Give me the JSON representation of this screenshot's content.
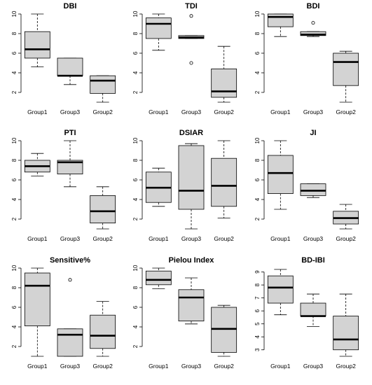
{
  "chart_data": [
    {
      "type": "box",
      "title": "DBI",
      "categories": [
        "Group1",
        "Group3",
        "Group2"
      ],
      "yticks": [
        2,
        4,
        6,
        8,
        10
      ],
      "ylim": [
        1,
        10
      ],
      "boxes": [
        {
          "min": 4.6,
          "q1": 5.5,
          "median": 6.4,
          "q3": 8.2,
          "max": 10.0,
          "outliers": []
        },
        {
          "min": 2.8,
          "q1": 3.7,
          "median": 3.7,
          "q3": 5.5,
          "max": 5.5,
          "outliers": []
        },
        {
          "min": 1.0,
          "q1": 1.9,
          "median": 3.2,
          "q3": 3.7,
          "max": 3.7,
          "outliers": []
        }
      ]
    },
    {
      "type": "box",
      "title": "TDI",
      "categories": [
        "Group1",
        "Group3",
        "Group2"
      ],
      "yticks": [
        2,
        4,
        6,
        8,
        10
      ],
      "ylim": [
        1,
        10
      ],
      "boxes": [
        {
          "min": 6.3,
          "q1": 7.5,
          "median": 9.0,
          "q3": 9.6,
          "max": 10.0,
          "outliers": []
        },
        {
          "min": 7.5,
          "q1": 7.5,
          "median": 7.6,
          "q3": 7.8,
          "max": 7.8,
          "outliers": [
            9.8,
            5.0
          ]
        },
        {
          "min": 1.0,
          "q1": 1.5,
          "median": 2.1,
          "q3": 4.4,
          "max": 6.7,
          "outliers": []
        }
      ]
    },
    {
      "type": "box",
      "title": "BDI",
      "categories": [
        "Group1",
        "Group3",
        "Group2"
      ],
      "yticks": [
        2,
        4,
        6,
        8,
        10
      ],
      "ylim": [
        1,
        10
      ],
      "boxes": [
        {
          "min": 7.7,
          "q1": 8.7,
          "median": 9.7,
          "q3": 10.0,
          "max": 10.0,
          "outliers": []
        },
        {
          "min": 7.7,
          "q1": 7.8,
          "median": 7.9,
          "q3": 8.2,
          "max": 8.2,
          "outliers": [
            9.1
          ]
        },
        {
          "min": 1.0,
          "q1": 2.7,
          "median": 5.1,
          "q3": 6.0,
          "max": 6.2,
          "outliers": []
        }
      ]
    },
    {
      "type": "box",
      "title": "PTI",
      "categories": [
        "Group1",
        "Group3",
        "Group2"
      ],
      "yticks": [
        2,
        4,
        6,
        8,
        10
      ],
      "ylim": [
        1,
        10
      ],
      "boxes": [
        {
          "min": 6.4,
          "q1": 6.8,
          "median": 7.4,
          "q3": 8.0,
          "max": 8.7,
          "outliers": []
        },
        {
          "min": 5.3,
          "q1": 6.6,
          "median": 7.8,
          "q3": 8.0,
          "max": 10.0,
          "outliers": []
        },
        {
          "min": 1.0,
          "q1": 1.6,
          "median": 2.8,
          "q3": 4.4,
          "max": 5.3,
          "outliers": []
        }
      ]
    },
    {
      "type": "box",
      "title": "DSIAR",
      "categories": [
        "Group1",
        "Group3",
        "Group2"
      ],
      "yticks": [
        2,
        4,
        6,
        8,
        10
      ],
      "ylim": [
        1,
        10
      ],
      "boxes": [
        {
          "min": 3.3,
          "q1": 3.7,
          "median": 5.2,
          "q3": 6.8,
          "max": 7.2,
          "outliers": []
        },
        {
          "min": 1.0,
          "q1": 3.0,
          "median": 4.9,
          "q3": 9.5,
          "max": 9.7,
          "outliers": []
        },
        {
          "min": 2.1,
          "q1": 3.3,
          "median": 5.4,
          "q3": 8.2,
          "max": 10.0,
          "outliers": []
        }
      ]
    },
    {
      "type": "box",
      "title": "JI",
      "categories": [
        "Group1",
        "Group3",
        "Group2"
      ],
      "yticks": [
        2,
        4,
        6,
        8,
        10
      ],
      "ylim": [
        1,
        10
      ],
      "boxes": [
        {
          "min": 3.0,
          "q1": 4.6,
          "median": 6.7,
          "q3": 8.5,
          "max": 10.0,
          "outliers": []
        },
        {
          "min": 4.2,
          "q1": 4.4,
          "median": 4.9,
          "q3": 5.6,
          "max": 5.6,
          "outliers": []
        },
        {
          "min": 1.0,
          "q1": 1.5,
          "median": 2.1,
          "q3": 2.8,
          "max": 3.5,
          "outliers": []
        }
      ]
    },
    {
      "type": "box",
      "title": "Sensitive%",
      "categories": [
        "Group1",
        "Group3",
        "Group2"
      ],
      "yticks": [
        2,
        4,
        6,
        8,
        10
      ],
      "ylim": [
        1,
        10
      ],
      "boxes": [
        {
          "min": 1.0,
          "q1": 4.1,
          "median": 8.2,
          "q3": 9.5,
          "max": 10.0,
          "outliers": []
        },
        {
          "min": 1.0,
          "q1": 1.0,
          "median": 3.2,
          "q3": 3.8,
          "max": 3.8,
          "outliers": [
            8.8
          ]
        },
        {
          "min": 1.0,
          "q1": 1.8,
          "median": 3.1,
          "q3": 5.2,
          "max": 6.6,
          "outliers": []
        }
      ]
    },
    {
      "type": "box",
      "title": "Pielou Index",
      "categories": [
        "Group1",
        "Group3",
        "Group2"
      ],
      "yticks": [
        2,
        4,
        6,
        8,
        10
      ],
      "ylim": [
        1,
        10
      ],
      "boxes": [
        {
          "min": 7.9,
          "q1": 8.3,
          "median": 8.8,
          "q3": 9.7,
          "max": 10.0,
          "outliers": []
        },
        {
          "min": 4.3,
          "q1": 4.6,
          "median": 7.0,
          "q3": 7.8,
          "max": 9.0,
          "outliers": []
        },
        {
          "min": 1.0,
          "q1": 1.4,
          "median": 3.8,
          "q3": 6.0,
          "max": 6.2,
          "outliers": []
        }
      ]
    },
    {
      "type": "box",
      "title": "BD-IBI",
      "categories": [
        "Group1",
        "Group3",
        "Group2"
      ],
      "yticks": [
        3,
        4,
        5,
        6,
        7,
        8,
        9
      ],
      "ylim": [
        2.5,
        9.3
      ],
      "boxes": [
        {
          "min": 5.7,
          "q1": 6.6,
          "median": 7.8,
          "q3": 8.7,
          "max": 9.2,
          "outliers": []
        },
        {
          "min": 4.8,
          "q1": 5.6,
          "median": 5.6,
          "q3": 6.6,
          "max": 7.3,
          "outliers": []
        },
        {
          "min": 2.5,
          "q1": 3.0,
          "median": 3.8,
          "q3": 5.6,
          "max": 7.3,
          "outliers": []
        }
      ]
    }
  ]
}
